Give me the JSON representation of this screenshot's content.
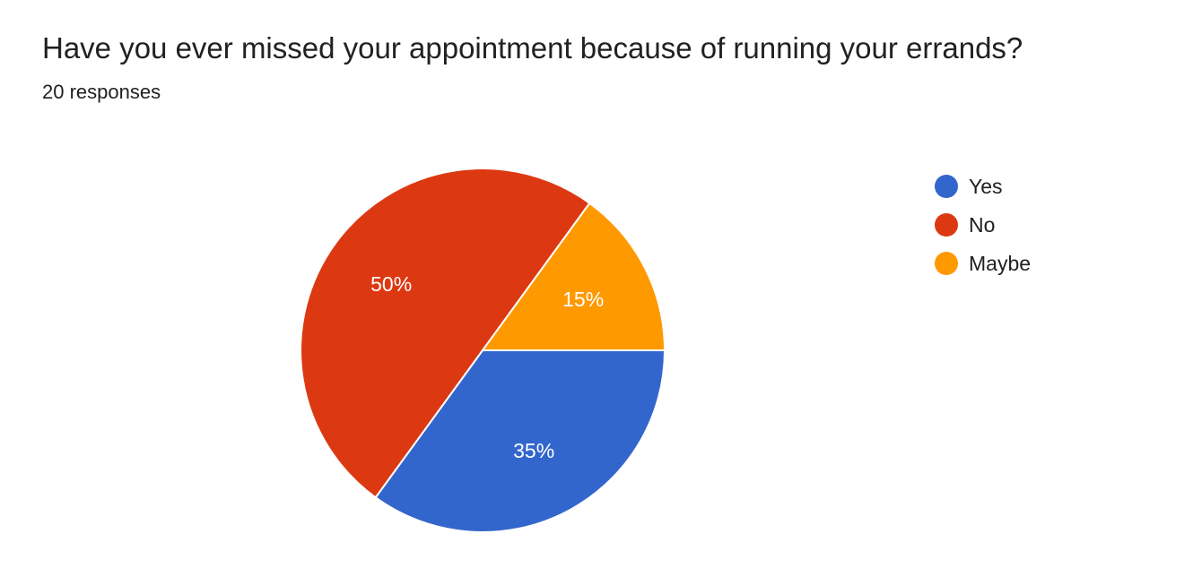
{
  "chart_data": {
    "type": "pie",
    "title": "Have you ever missed your appointment because of running your errands?",
    "subtitle": "20 responses",
    "legend_position": "right",
    "slices": [
      {
        "label": "Yes",
        "value": 35,
        "display": "35%",
        "color": "#3366cc"
      },
      {
        "label": "No",
        "value": 50,
        "display": "50%",
        "color": "#dc3912"
      },
      {
        "label": "Maybe",
        "value": 15,
        "display": "15%",
        "color": "#ff9900"
      }
    ]
  }
}
